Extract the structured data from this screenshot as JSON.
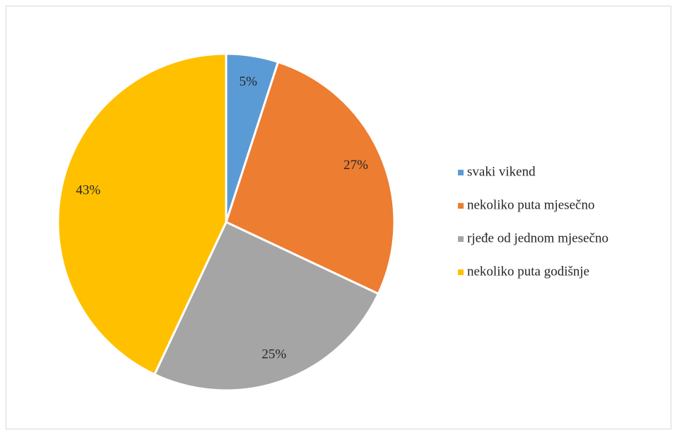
{
  "chart_data": {
    "type": "pie",
    "categories": [
      "svaki vikend",
      "nekoliko puta mjesečno",
      "rjeđe od jednom mjesečno",
      "nekoliko puta godišnje"
    ],
    "values": [
      5,
      27,
      25,
      43
    ],
    "value_labels": [
      "5%",
      "27%",
      "25%",
      "43%"
    ],
    "colors": [
      "#5b9bd5",
      "#ed7d31",
      "#a5a5a5",
      "#ffc000"
    ],
    "legend": "right"
  }
}
